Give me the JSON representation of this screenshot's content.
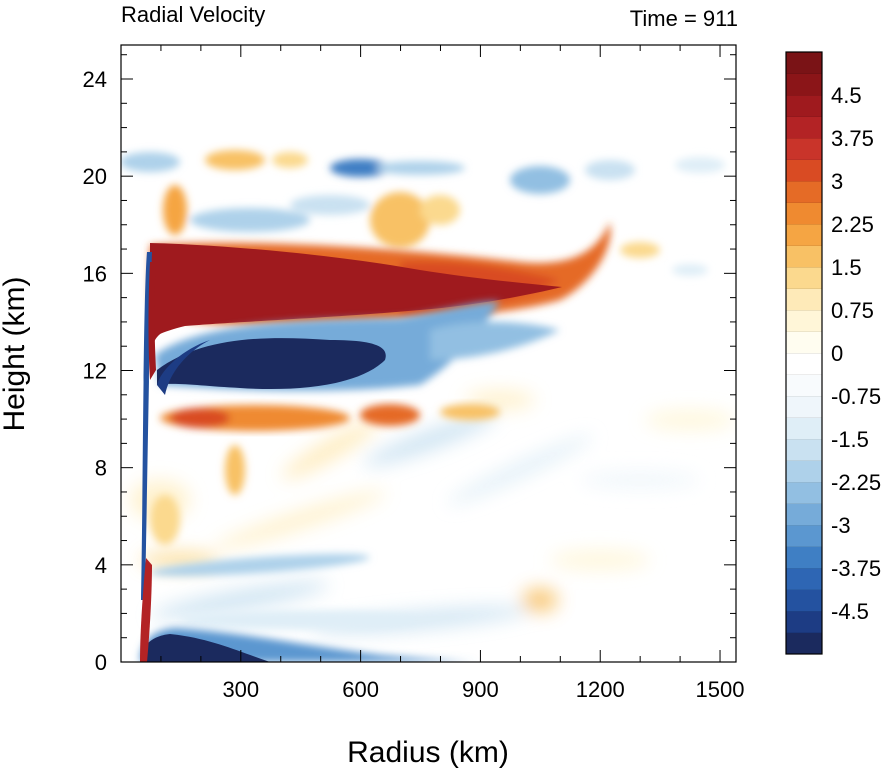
{
  "chart_data": {
    "type": "heatmap",
    "title": "Radial Velocity",
    "time_label": "Time = 911",
    "xlabel": "Radius (km)",
    "ylabel": "Height (km)",
    "xlim": [
      0,
      1540
    ],
    "ylim": [
      0,
      25.4
    ],
    "xticks": [
      300,
      600,
      900,
      1200,
      1500
    ],
    "yticks": [
      0,
      4,
      8,
      12,
      16,
      20,
      24
    ],
    "colorbar": {
      "min": -5.25,
      "max": 5.25,
      "step": 0.375,
      "labels": [
        "4.5",
        "3.75",
        "3",
        "2.25",
        "1.5",
        "0.75",
        "0",
        "-0.75",
        "-1.5",
        "-2.25",
        "-3",
        "-3.75",
        "-4.5"
      ],
      "label_values": [
        4.5,
        3.75,
        3,
        2.25,
        1.5,
        0.75,
        0,
        -0.75,
        -1.5,
        -2.25,
        -3,
        -3.75,
        -4.5
      ],
      "colors": [
        "#1b2a5e",
        "#1d3c84",
        "#2452a0",
        "#2e66b4",
        "#3f7fc4",
        "#5b97d0",
        "#76abd9",
        "#92bfe2",
        "#aed1ea",
        "#c9e1f1",
        "#dfeef7",
        "#eff6fb",
        "#f8fbfd",
        "#ffffff",
        "#fffdf0",
        "#fff6d8",
        "#feeab8",
        "#fbd98e",
        "#f8c165",
        "#f5a543",
        "#ef8a30",
        "#e56b26",
        "#d94b23",
        "#c9342a",
        "#b32325",
        "#9f1a1e",
        "#8b1518",
        "#7a1316"
      ]
    },
    "features": [
      {
        "name": "upper-outflow-positive",
        "r_start": 70,
        "r_end": 1100,
        "z_center": 15.2,
        "value": 5.25
      },
      {
        "name": "upper-inflow-negative",
        "r_start": 80,
        "r_end": 800,
        "z_center": 12.3,
        "value": -5.25
      },
      {
        "name": "mid-outflow-positive",
        "r_start": 80,
        "r_end": 650,
        "z_center": 9.9,
        "value": 2.6
      },
      {
        "name": "boundary-layer-inflow",
        "r_start": 40,
        "r_end": 450,
        "z_center": 0.5,
        "value": -5.25
      },
      {
        "name": "eyewall-outflow-low",
        "r_start": 55,
        "r_end": 75,
        "z_center": 2.5,
        "value": 5.25
      },
      {
        "name": "tropopause-inflow",
        "r_start": 500,
        "r_end": 1000,
        "z_center": 20.0,
        "value": -1.8
      }
    ]
  }
}
